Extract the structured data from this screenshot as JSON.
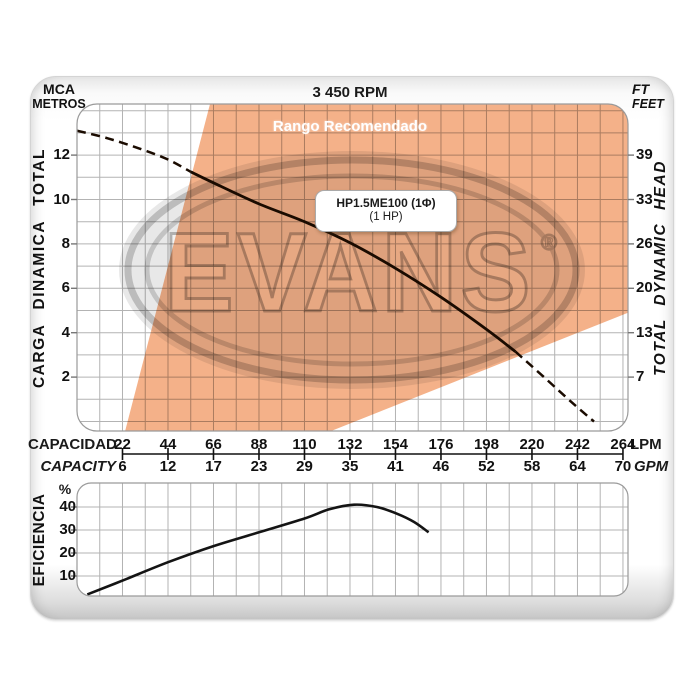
{
  "header": {
    "rpm": "3 450 RPM",
    "left_unit_line1": "MCA",
    "left_unit_line2": "METROS",
    "right_unit_line1": "FT",
    "right_unit_line2": "FEET"
  },
  "watermark": {
    "text": "EVANS",
    "registered_mark": "®"
  },
  "colors": {
    "range_fill": "#f4b189",
    "head_curve": "#1a0b00",
    "efficiency_curve": "#141414",
    "grid": "#b3b3b3",
    "plot_border": "#9a9a9a",
    "axis_line": "#111111",
    "watermark_gray": "#d9d9d9",
    "text": "#111111"
  },
  "chart_data": [
    {
      "type": "line",
      "title": "3 450 RPM",
      "x_axis": {
        "label_primary": "CAPACIDAD",
        "unit_primary": "LPM",
        "ticks_lpm": [
          22,
          44,
          66,
          88,
          110,
          132,
          154,
          176,
          198,
          220,
          242,
          264
        ],
        "label_secondary": "CAPACITY",
        "unit_secondary": "GPM",
        "ticks_gpm": [
          6,
          12,
          17,
          23,
          29,
          35,
          41,
          46,
          52,
          58,
          64,
          70
        ],
        "range_lpm": [
          0,
          266.5
        ],
        "grid_step_lpm": 11
      },
      "y_axis": {
        "label_left": "CARGA DINAMICA TOTAL",
        "ticks_m": [
          2,
          4,
          6,
          8,
          10,
          12
        ],
        "label_right": "TOTAL DYNAMIC HEAD",
        "ticks_ft": [
          7,
          13,
          20,
          26,
          33,
          39
        ],
        "range_m": [
          0,
          14.3
        ],
        "grid_step_m": 1
      },
      "grid": true,
      "series": [
        {
          "name": "head-curve-dashed-left",
          "style": "dashed",
          "points_lpm_m": [
            [
              0,
              13.1
            ],
            [
              15,
              12.75
            ],
            [
              30,
              12.3
            ],
            [
              44,
              11.8
            ],
            [
              55,
              11.25
            ]
          ]
        },
        {
          "name": "head-curve-solid",
          "style": "solid",
          "points_lpm_m": [
            [
              55,
              11.25
            ],
            [
              66,
              10.75
            ],
            [
              88,
              9.8
            ],
            [
              110,
              9.0
            ],
            [
              132,
              8.05
            ],
            [
              154,
              6.9
            ],
            [
              176,
              5.6
            ],
            [
              198,
              4.15
            ],
            [
              212,
              3.15
            ]
          ]
        },
        {
          "name": "head-curve-dashed-right",
          "style": "dashed",
          "points_lpm_m": [
            [
              212,
              3.15
            ],
            [
              227,
              1.9
            ],
            [
              240,
              0.8
            ],
            [
              250,
              0.0
            ]
          ]
        }
      ],
      "recommended_range": {
        "label": "Rango Recomendado",
        "polygon_lpm_m": [
          [
            64.3,
            14.3
          ],
          [
            266.5,
            14.3
          ],
          [
            266.5,
            4.9
          ],
          [
            122.3,
            -0.45
          ],
          [
            23.2,
            -0.45
          ]
        ]
      },
      "model_label": {
        "line1": "HP1.5ME100 (1Φ)",
        "line2": "(1 HP)"
      }
    },
    {
      "type": "line",
      "y_axis": {
        "label": "EFICIENCIA",
        "unit": "%",
        "ticks_pct": [
          10,
          20,
          30,
          40
        ],
        "range_pct": [
          0,
          49
        ]
      },
      "grid": true,
      "series": [
        {
          "name": "efficiency-curve",
          "style": "solid",
          "points_lpm_pct": [
            [
              5,
              2
            ],
            [
              22,
              8
            ],
            [
              44,
              16
            ],
            [
              66,
              23
            ],
            [
              88,
              29
            ],
            [
              110,
              35
            ],
            [
              122,
              39
            ],
            [
              134,
              41
            ],
            [
              145,
              40
            ],
            [
              155,
              37
            ],
            [
              163,
              33.5
            ],
            [
              170,
              29
            ]
          ]
        }
      ]
    }
  ]
}
